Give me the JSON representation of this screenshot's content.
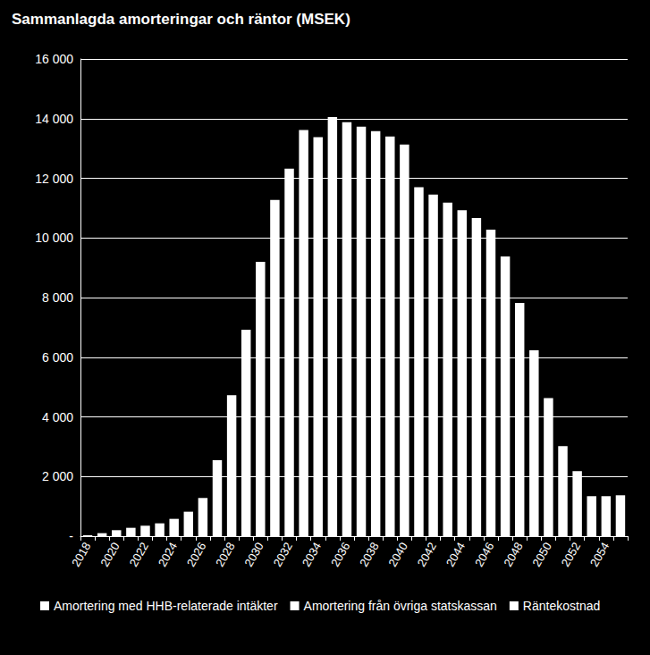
{
  "chart_data": {
    "type": "bar",
    "title": "Sammanlagda amorteringar och räntor (MSEK)",
    "stacked": true,
    "grid": true,
    "legend": "bottom",
    "categories": [
      "2018",
      null,
      "2020",
      null,
      "2022",
      null,
      "2024",
      null,
      "2026",
      null,
      "2028",
      null,
      "2030",
      null,
      "2032",
      null,
      "2034",
      null,
      "2036",
      null,
      "2038",
      null,
      "2040",
      null,
      "2042",
      null,
      "2044",
      null,
      "2046",
      null,
      "2048",
      null,
      "2050",
      null,
      "2052",
      null,
      "2054",
      null
    ],
    "series": [
      {
        "name": "Amortering med HHB-relaterade intäkter",
        "color": "#ffffff",
        "values": [
          30,
          100,
          200,
          280,
          350,
          430,
          580,
          820,
          1280,
          2550,
          4730,
          6920,
          9200,
          11270,
          12320,
          13620,
          13380,
          14050,
          13880,
          13730,
          13580,
          13400,
          13130,
          11700,
          11450,
          11180,
          10930,
          10670,
          10280,
          9380,
          7820,
          6230,
          4630,
          3020,
          2180,
          1340,
          1340,
          1370
        ]
      },
      {
        "name": "Amortering från övriga statskassan",
        "color": "#ffffff",
        "values": [
          null,
          null,
          null,
          null,
          null,
          null,
          null,
          null,
          null,
          null,
          null,
          null,
          null,
          null,
          null,
          null,
          null,
          null,
          null,
          null,
          null,
          null,
          null,
          null,
          null,
          null,
          null,
          null,
          null,
          null,
          null,
          null,
          null,
          null,
          null,
          null,
          null,
          null
        ]
      },
      {
        "name": "Räntekostnad",
        "color": "#ffffff",
        "values": [
          null,
          null,
          null,
          null,
          null,
          null,
          null,
          null,
          null,
          null,
          null,
          null,
          null,
          null,
          null,
          null,
          null,
          null,
          null,
          null,
          null,
          null,
          null,
          null,
          null,
          null,
          null,
          null,
          null,
          null,
          null,
          null,
          null,
          null,
          null,
          null,
          null,
          null
        ]
      }
    ],
    "ylim": [
      0,
      16000
    ],
    "yticks": [
      {
        "value": 0,
        "label": "-"
      },
      {
        "value": 2000,
        "label": "2 000"
      },
      {
        "value": 4000,
        "label": "4 000"
      },
      {
        "value": 6000,
        "label": "6 000"
      },
      {
        "value": 8000,
        "label": "8 000"
      },
      {
        "value": 10000,
        "label": "10 000"
      },
      {
        "value": 12000,
        "label": "12 000"
      },
      {
        "value": 14000,
        "label": "14 000"
      },
      {
        "value": 16000,
        "label": "16 000"
      }
    ]
  }
}
